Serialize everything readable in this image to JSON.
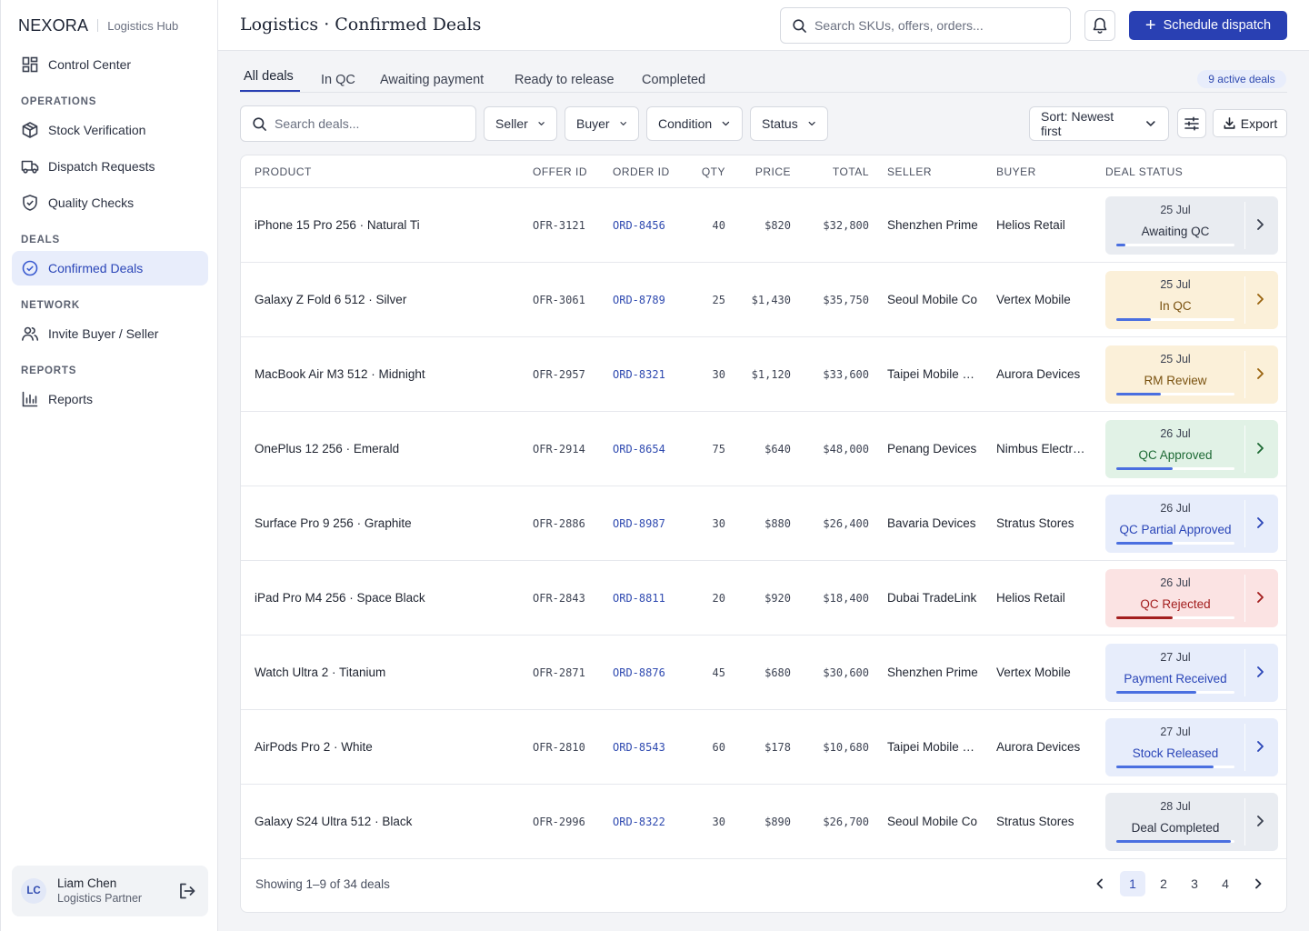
{
  "brand": {
    "logo": "NEXORA",
    "subtitle": "Logistics Hub"
  },
  "sidebar": {
    "control_center": "Control Center",
    "sections": {
      "operations": "OPERATIONS",
      "deals": "DEALS",
      "network": "NETWORK",
      "reports": "REPORTS"
    },
    "stock_verification": "Stock Verification",
    "dispatch_requests": "Dispatch Requests",
    "quality_checks": "Quality Checks",
    "confirmed_deals": "Confirmed Deals",
    "invite": "Invite Buyer / Seller",
    "reports": "Reports"
  },
  "user": {
    "initials": "LC",
    "name": "Liam Chen",
    "role": "Logistics Partner"
  },
  "header": {
    "title": "Logistics · Confirmed Deals",
    "search_placeholder": "Search SKUs, offers, orders...",
    "primary_button": "Schedule dispatch"
  },
  "tabs": [
    "All deals",
    "In QC",
    "Awaiting payment",
    "Ready to release",
    "Completed"
  ],
  "active_badge": "9 active deals",
  "filters": {
    "search_placeholder": "Search deals...",
    "seller": "Seller",
    "buyer": "Buyer",
    "condition": "Condition",
    "status": "Status",
    "sort": "Sort: Newest first",
    "export": "Export"
  },
  "table": {
    "columns": [
      "PRODUCT",
      "OFFER ID",
      "ORDER ID",
      "QTY",
      "PRICE",
      "TOTAL",
      "SELLER",
      "BUYER",
      "DEAL STATUS"
    ],
    "rows": [
      {
        "product": "iPhone 15 Pro 256 · Natural Ti",
        "offer": "OFR-3121",
        "order": "ORD-8456",
        "qty": "40",
        "price": "$820",
        "total": "$32,800",
        "seller": "Shenzhen Prime",
        "buyer": "Helios Retail",
        "date": "25 Jul",
        "status": "Awaiting QC",
        "progress": 0.08,
        "bg": "#e9ecf1",
        "fg": "#2a3040",
        "bar": "#4a6fe0",
        "chev": "#3a4050"
      },
      {
        "product": "Galaxy Z Fold 6 512 · Silver",
        "offer": "OFR-3061",
        "order": "ORD-8789",
        "qty": "25",
        "price": "$1,430",
        "total": "$35,750",
        "seller": "Seoul Mobile Co",
        "buyer": "Vertex Mobile",
        "date": "25 Jul",
        "status": "In QC",
        "progress": 0.29,
        "bg": "#fbf0d9",
        "fg": "#7a5210",
        "bar": "#4a6fe0",
        "chev": "#9a6410"
      },
      {
        "product": "MacBook Air M3 512 · Midnight",
        "offer": "OFR-2957",
        "order": "ORD-8321",
        "qty": "30",
        "price": "$1,120",
        "total": "$33,600",
        "seller": "Taipei Mobile Hub",
        "buyer": "Aurora Devices",
        "date": "25 Jul",
        "status": "RM Review",
        "progress": 0.38,
        "bg": "#fbf0d9",
        "fg": "#7a5210",
        "bar": "#4a6fe0",
        "chev": "#9a6410"
      },
      {
        "product": "OnePlus 12 256 · Emerald",
        "offer": "OFR-2914",
        "order": "ORD-8654",
        "qty": "75",
        "price": "$640",
        "total": "$48,000",
        "seller": "Penang Devices",
        "buyer": "Nimbus Electronics",
        "date": "26 Jul",
        "status": "QC Approved",
        "progress": 0.48,
        "bg": "#e1f2e6",
        "fg": "#1e6a35",
        "bar": "#4a6fe0",
        "chev": "#1e6a35"
      },
      {
        "product": "Surface Pro 9 256 · Graphite",
        "offer": "OFR-2886",
        "order": "ORD-8987",
        "qty": "30",
        "price": "$880",
        "total": "$26,400",
        "seller": "Bavaria Devices",
        "buyer": "Stratus Stores",
        "date": "26 Jul",
        "status": "QC Partial Approved",
        "progress": 0.48,
        "bg": "#e7edfb",
        "fg": "#2b46b8",
        "bar": "#4a6fe0",
        "chev": "#2b46b8"
      },
      {
        "product": "iPad Pro M4 256 · Space Black",
        "offer": "OFR-2843",
        "order": "ORD-8811",
        "qty": "20",
        "price": "$920",
        "total": "$18,400",
        "seller": "Dubai TradeLink",
        "buyer": "Helios Retail",
        "date": "26 Jul",
        "status": "QC Rejected",
        "progress": 0.48,
        "bg": "#fbe3e3",
        "fg": "#a31e1e",
        "bar": "#a31e1e",
        "chev": "#a31e1e"
      },
      {
        "product": "Watch Ultra 2 · Titanium",
        "offer": "OFR-2871",
        "order": "ORD-8876",
        "qty": "45",
        "price": "$680",
        "total": "$30,600",
        "seller": "Shenzhen Prime",
        "buyer": "Vertex Mobile",
        "date": "27 Jul",
        "status": "Payment Received",
        "progress": 0.68,
        "bg": "#e7edfb",
        "fg": "#2b46b8",
        "bar": "#4a6fe0",
        "chev": "#2b46b8"
      },
      {
        "product": "AirPods Pro 2 · White",
        "offer": "OFR-2810",
        "order": "ORD-8543",
        "qty": "60",
        "price": "$178",
        "total": "$10,680",
        "seller": "Taipei Mobile Hub",
        "buyer": "Aurora Devices",
        "date": "27 Jul",
        "status": "Stock Released",
        "progress": 0.82,
        "bg": "#e7edfb",
        "fg": "#2b46b8",
        "bar": "#4a6fe0",
        "chev": "#2b46b8"
      },
      {
        "product": "Galaxy S24 Ultra 512 · Black",
        "offer": "OFR-2996",
        "order": "ORD-8322",
        "qty": "30",
        "price": "$890",
        "total": "$26,700",
        "seller": "Seoul Mobile Co",
        "buyer": "Stratus Stores",
        "date": "28 Jul",
        "status": "Deal Completed",
        "progress": 0.97,
        "bg": "#e9ecf1",
        "fg": "#2a3040",
        "bar": "#4a6fe0",
        "chev": "#3a4050"
      }
    ]
  },
  "footer": {
    "showing": "Showing 1–9 of 34 deals",
    "pages": [
      "1",
      "2",
      "3",
      "4"
    ]
  }
}
